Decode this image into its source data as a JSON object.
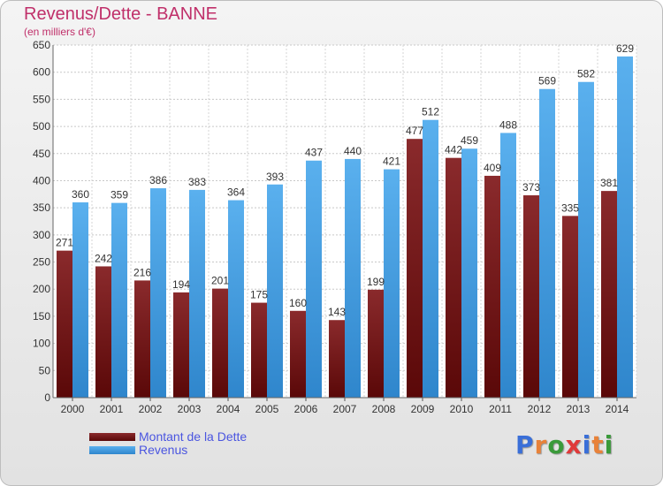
{
  "header": {
    "title": "Revenus/Dette - BANNE",
    "subtitle": "(en milliers d'€)"
  },
  "legend": {
    "items": [
      {
        "label": "Montant de la Dette",
        "color": "#7a1e20"
      },
      {
        "label": "Revenus",
        "color": "#4fa6e5"
      }
    ]
  },
  "brand": {
    "text": "Proxiti",
    "letter_colors": [
      "#3a6fd8",
      "#e8823a",
      "#3a9a3a",
      "#e03a3a",
      "#3a6fd8",
      "#e8823a",
      "#3a9a3a"
    ]
  },
  "chart_data": {
    "type": "bar",
    "title": "Revenus/Dette - BANNE",
    "subtitle": "(en milliers d'€)",
    "categories": [
      "2000",
      "2001",
      "2002",
      "2003",
      "2004",
      "2005",
      "2006",
      "2007",
      "2008",
      "2009",
      "2010",
      "2011",
      "2012",
      "2013",
      "2014"
    ],
    "series": [
      {
        "name": "Montant de la Dette",
        "color": "#7a1e20",
        "values": [
          271,
          242,
          216,
          194,
          201,
          175,
          160,
          143,
          199,
          477,
          442,
          409,
          373,
          335,
          381
        ]
      },
      {
        "name": "Revenus",
        "color": "#4fa6e5",
        "values": [
          360,
          359,
          386,
          383,
          364,
          393,
          437,
          440,
          421,
          512,
          459,
          488,
          569,
          582,
          629
        ]
      }
    ],
    "ylim": [
      0,
      650
    ],
    "yticks": [
      0,
      50,
      100,
      150,
      200,
      250,
      300,
      350,
      400,
      450,
      500,
      550,
      600,
      650
    ],
    "grid": true,
    "legend_position": "bottom-left"
  }
}
